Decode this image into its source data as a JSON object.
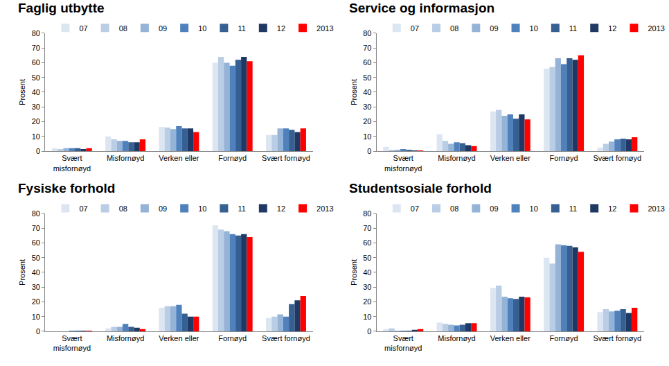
{
  "chart_data": [
    {
      "type": "bar",
      "title": "Faglig utbytte",
      "y_label": "Prosent",
      "categories": [
        "Svært misfornøyd",
        "Misfornøyd",
        "Verken eller",
        "Fornøyd",
        "Svært fornøyd"
      ],
      "series": [
        {
          "name": "07",
          "color": "#dce6f2",
          "values": [
            2,
            10,
            16.5,
            60,
            11
          ]
        },
        {
          "name": "08",
          "color": "#b9cde5",
          "values": [
            1.5,
            8,
            16,
            64,
            11
          ]
        },
        {
          "name": "09",
          "color": "#95b3d7",
          "values": [
            2,
            7,
            15,
            60,
            15.5
          ]
        },
        {
          "name": "10",
          "color": "#4f81bd",
          "values": [
            2,
            7,
            17,
            58,
            15.5
          ]
        },
        {
          "name": "11",
          "color": "#376092",
          "values": [
            2,
            6,
            15.5,
            62,
            14.5
          ]
        },
        {
          "name": "12",
          "color": "#1f3864",
          "values": [
            1.5,
            6,
            15.5,
            64,
            13
          ]
        },
        {
          "name": "2013",
          "color": "#ff0000",
          "values": [
            2,
            8,
            13,
            61,
            15.5
          ]
        }
      ],
      "ylim": [
        0,
        80
      ],
      "yticks": [
        0,
        10,
        20,
        30,
        40,
        50,
        60,
        70,
        80
      ],
      "grid": false,
      "legend": "top"
    },
    {
      "type": "bar",
      "title": "Service og informasjon",
      "y_label": "Prosent",
      "categories": [
        "Svært misfornøyd",
        "Misfornøyd",
        "Verken eller",
        "Fornøyd",
        "Svært fornøyd"
      ],
      "series": [
        {
          "name": "07",
          "color": "#dce6f2",
          "values": [
            3,
            11.5,
            27,
            56,
            2.5
          ]
        },
        {
          "name": "08",
          "color": "#b9cde5",
          "values": [
            1,
            7,
            28,
            57,
            5
          ]
        },
        {
          "name": "09",
          "color": "#95b3d7",
          "values": [
            1,
            5,
            24,
            63,
            6.5
          ]
        },
        {
          "name": "10",
          "color": "#4f81bd",
          "values": [
            1.5,
            6,
            25,
            59,
            8
          ]
        },
        {
          "name": "11",
          "color": "#376092",
          "values": [
            1,
            5.5,
            22,
            63,
            8.5
          ]
        },
        {
          "name": "12",
          "color": "#1f3864",
          "values": [
            0.5,
            4,
            25,
            62,
            8
          ]
        },
        {
          "name": "2013",
          "color": "#ff0000",
          "values": [
            0.5,
            3.5,
            21.5,
            65,
            9.5
          ]
        }
      ],
      "ylim": [
        0,
        80
      ],
      "yticks": [
        0,
        10,
        20,
        30,
        40,
        50,
        60,
        70,
        80
      ],
      "grid": false,
      "legend": "top"
    },
    {
      "type": "bar",
      "title": "Fysiske forhold",
      "y_label": "Prosent",
      "categories": [
        "Svært misfornøyd",
        "Misfornøyd",
        "Verken eller",
        "Fornøyd",
        "Svært fornøyd"
      ],
      "series": [
        {
          "name": "07",
          "color": "#dce6f2",
          "values": [
            0,
            2,
            16,
            72,
            9
          ]
        },
        {
          "name": "08",
          "color": "#b9cde5",
          "values": [
            0,
            3,
            17,
            69,
            10
          ]
        },
        {
          "name": "09",
          "color": "#95b3d7",
          "values": [
            0,
            3,
            17,
            68,
            11.5
          ]
        },
        {
          "name": "10",
          "color": "#4f81bd",
          "values": [
            0.5,
            5,
            18,
            66,
            10
          ]
        },
        {
          "name": "11",
          "color": "#376092",
          "values": [
            0.5,
            3,
            12,
            65,
            18.5
          ]
        },
        {
          "name": "12",
          "color": "#1f3864",
          "values": [
            0.5,
            2.5,
            10,
            66,
            21
          ]
        },
        {
          "name": "2013",
          "color": "#ff0000",
          "values": [
            0.5,
            1.5,
            10,
            64,
            24
          ]
        }
      ],
      "ylim": [
        0,
        80
      ],
      "yticks": [
        0,
        10,
        20,
        30,
        40,
        50,
        60,
        70,
        80
      ],
      "grid": false,
      "legend": "top"
    },
    {
      "type": "bar",
      "title": "Studentsosiale forhold",
      "y_label": "Prosent",
      "categories": [
        "Svært misfornøyd",
        "Misfornøyd",
        "Verken eller",
        "Fornøyd",
        "Svært fornøyd"
      ],
      "series": [
        {
          "name": "07",
          "color": "#dce6f2",
          "values": [
            1.5,
            6,
            29.5,
            50,
            13
          ]
        },
        {
          "name": "08",
          "color": "#b9cde5",
          "values": [
            2,
            5,
            31,
            46,
            15
          ]
        },
        {
          "name": "09",
          "color": "#95b3d7",
          "values": [
            0.5,
            4.5,
            23.5,
            59,
            13.5
          ]
        },
        {
          "name": "10",
          "color": "#4f81bd",
          "values": [
            0.5,
            4,
            22.5,
            58.5,
            14
          ]
        },
        {
          "name": "11",
          "color": "#376092",
          "values": [
            0.5,
            4.5,
            22,
            58,
            15
          ]
        },
        {
          "name": "12",
          "color": "#1f3864",
          "values": [
            1,
            5.5,
            23.5,
            57,
            12.5
          ]
        },
        {
          "name": "2013",
          "color": "#ff0000",
          "values": [
            1.5,
            5.5,
            23,
            54,
            16
          ]
        }
      ],
      "ylim": [
        0,
        80
      ],
      "yticks": [
        0,
        10,
        20,
        30,
        40,
        50,
        60,
        70,
        80
      ],
      "grid": false,
      "legend": "top"
    }
  ]
}
